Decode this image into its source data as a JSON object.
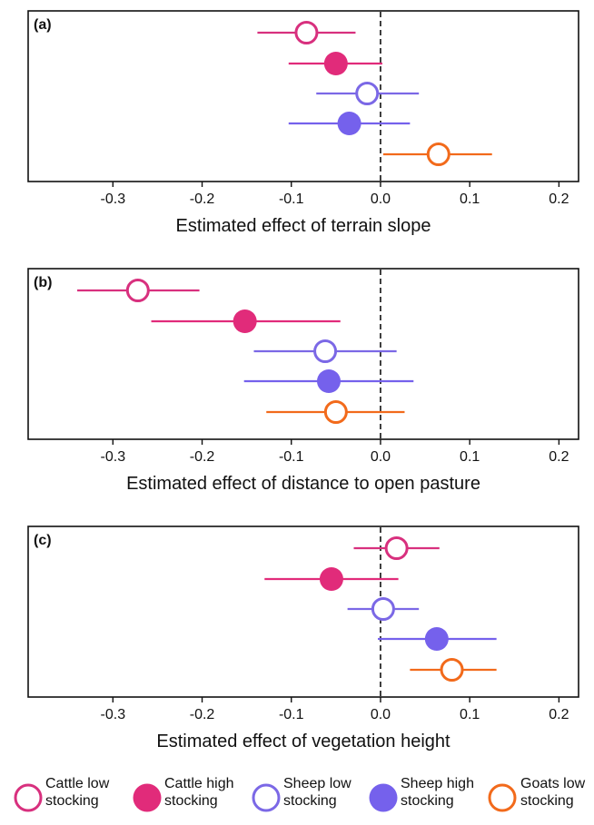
{
  "chart_data": [
    {
      "type": "scatter",
      "panel_label": "(a)",
      "xlabel": "Estimated effect of terrain slope",
      "xlim": [
        -0.395,
        0.222
      ],
      "xticks": [
        -0.3,
        -0.2,
        -0.1,
        0.0,
        0.1,
        0.2
      ],
      "xtick_labels": [
        "-0.3",
        "-0.2",
        "-0.1",
        "0.0",
        "0.1",
        "0.2"
      ],
      "reference_line_x": 0,
      "points": [
        {
          "series": "Cattle low stocking",
          "estimate": -0.083,
          "lower": -0.138,
          "upper": -0.028
        },
        {
          "series": "Cattle high stocking",
          "estimate": -0.05,
          "lower": -0.103,
          "upper": 0.002
        },
        {
          "series": "Sheep low stocking",
          "estimate": -0.015,
          "lower": -0.072,
          "upper": 0.043
        },
        {
          "series": "Sheep high stocking",
          "estimate": -0.035,
          "lower": -0.103,
          "upper": 0.033
        },
        {
          "series": "Goats low stocking",
          "estimate": 0.065,
          "lower": 0.003,
          "upper": 0.125
        }
      ]
    },
    {
      "type": "scatter",
      "panel_label": "(b)",
      "xlabel": "Estimated effect of distance to open pasture",
      "xlim": [
        -0.395,
        0.222
      ],
      "xticks": [
        -0.3,
        -0.2,
        -0.1,
        0.0,
        0.1,
        0.2
      ],
      "xtick_labels": [
        "-0.3",
        "-0.2",
        "-0.1",
        "0.0",
        "0.1",
        "0.2"
      ],
      "reference_line_x": 0,
      "points": [
        {
          "series": "Cattle low stocking",
          "estimate": -0.272,
          "lower": -0.34,
          "upper": -0.203
        },
        {
          "series": "Cattle high stocking",
          "estimate": -0.152,
          "lower": -0.257,
          "upper": -0.045
        },
        {
          "series": "Sheep low stocking",
          "estimate": -0.062,
          "lower": -0.142,
          "upper": 0.018
        },
        {
          "series": "Sheep high stocking",
          "estimate": -0.058,
          "lower": -0.153,
          "upper": 0.037
        },
        {
          "series": "Goats low stocking",
          "estimate": -0.05,
          "lower": -0.128,
          "upper": 0.027
        }
      ]
    },
    {
      "type": "scatter",
      "panel_label": "(c)",
      "xlabel": "Estimated effect of vegetation height",
      "xlim": [
        -0.395,
        0.222
      ],
      "xticks": [
        -0.3,
        -0.2,
        -0.1,
        0.0,
        0.1,
        0.2
      ],
      "xtick_labels": [
        "-0.3",
        "-0.2",
        "-0.1",
        "0.0",
        "0.1",
        "0.2"
      ],
      "reference_line_x": 0,
      "points": [
        {
          "series": "Cattle low stocking",
          "estimate": 0.018,
          "lower": -0.03,
          "upper": 0.066
        },
        {
          "series": "Cattle high stocking",
          "estimate": -0.055,
          "lower": -0.13,
          "upper": 0.02
        },
        {
          "series": "Sheep low stocking",
          "estimate": 0.003,
          "lower": -0.037,
          "upper": 0.043
        },
        {
          "series": "Sheep high stocking",
          "estimate": 0.063,
          "lower": -0.003,
          "upper": 0.13
        },
        {
          "series": "Goats low stocking",
          "estimate": 0.08,
          "lower": 0.033,
          "upper": 0.13
        }
      ]
    }
  ],
  "series": [
    {
      "name": "Cattle low stocking",
      "label_line1": "Cattle low",
      "label_line2": "stocking",
      "color": "#d8307e",
      "marker": "open-circle"
    },
    {
      "name": "Cattle high stocking",
      "label_line1": "Cattle high",
      "label_line2": "stocking",
      "color": "#e12b7a",
      "marker": "filled-circle"
    },
    {
      "name": "Sheep low stocking",
      "label_line1": "Sheep low",
      "label_line2": "stocking",
      "color": "#7b68e6",
      "marker": "open-circle"
    },
    {
      "name": "Sheep high stocking",
      "label_line1": "Sheep high",
      "label_line2": "stocking",
      "color": "#7561ec",
      "marker": "filled-circle"
    },
    {
      "name": "Goats low stocking",
      "label_line1": "Goats low",
      "label_line2": "stocking",
      "color": "#f26a1b",
      "marker": "open-circle"
    }
  ],
  "legend_position": "bottom"
}
